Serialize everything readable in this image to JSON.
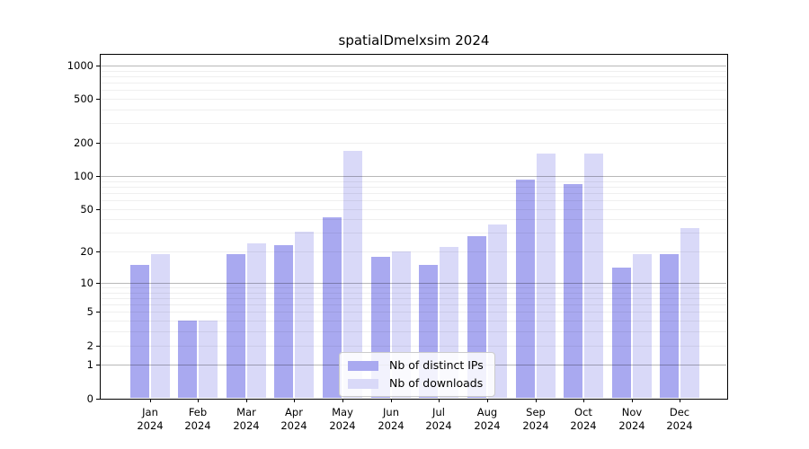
{
  "chart_data": {
    "type": "bar",
    "title": "spatialDmelxsim 2024",
    "year": "2024",
    "months": [
      "Jan",
      "Feb",
      "Mar",
      "Apr",
      "May",
      "Jun",
      "Jul",
      "Aug",
      "Sep",
      "Oct",
      "Nov",
      "Dec"
    ],
    "series": [
      {
        "name": "Nb of distinct IPs",
        "color": "#a9a9f0",
        "values": [
          15,
          4,
          19,
          23,
          42,
          18,
          15,
          28,
          92,
          84,
          14,
          19
        ]
      },
      {
        "name": "Nb of downloads",
        "color": "#d9d9f8",
        "values": [
          19,
          4,
          24,
          31,
          170,
          20,
          22,
          36,
          160,
          160,
          19,
          33
        ]
      }
    ],
    "xlabel": "",
    "ylabel": "",
    "yscale": "log1p",
    "yticks": [
      0,
      1,
      2,
      5,
      10,
      20,
      50,
      100,
      200,
      500,
      1000
    ],
    "ylim": [
      0,
      1250
    ],
    "grid": true,
    "legend_position": "lower center"
  }
}
